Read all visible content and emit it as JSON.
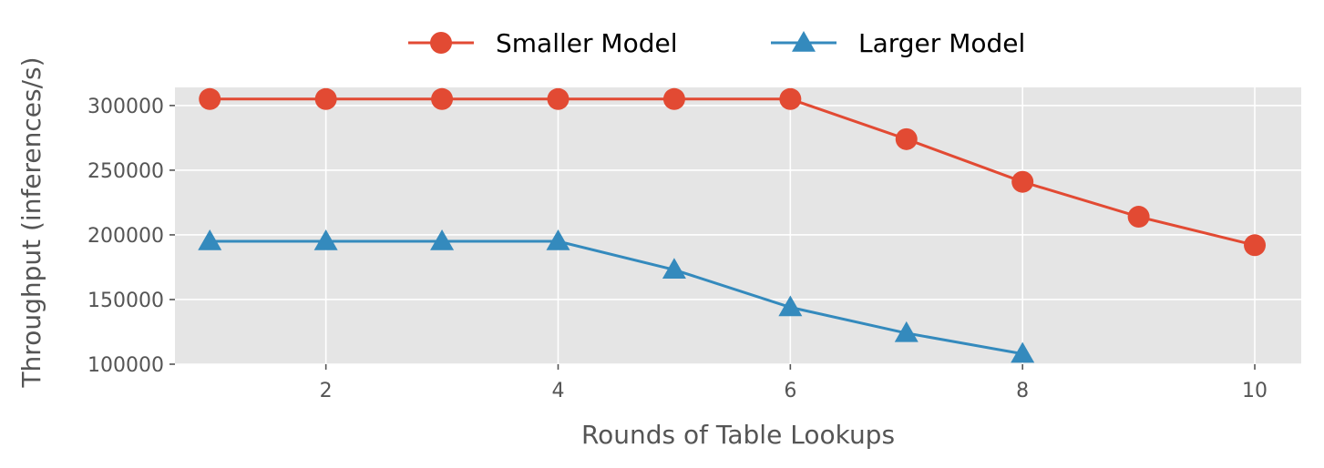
{
  "chart_data": {
    "type": "line",
    "xlabel": "Rounds of Table Lookups",
    "ylabel": "Throughput (inferences/s)",
    "xlim": [
      0.7,
      10.4
    ],
    "ylim": [
      100000,
      314000
    ],
    "x_ticks": [
      2,
      4,
      6,
      8,
      10
    ],
    "y_ticks": [
      100000,
      150000,
      200000,
      250000,
      300000
    ],
    "grid": true,
    "legend_position": "top-center",
    "background_color": "#e5e5e5",
    "series": [
      {
        "name": "Smaller Model",
        "color": "#e24a33",
        "marker": "circle",
        "x": [
          1,
          2,
          3,
          4,
          5,
          6,
          7,
          8,
          9,
          10
        ],
        "values": [
          305000,
          305000,
          305000,
          305000,
          305000,
          305000,
          274000,
          241000,
          214000,
          192000
        ]
      },
      {
        "name": "Larger Model",
        "color": "#348abd",
        "marker": "triangle",
        "x": [
          1,
          2,
          3,
          4,
          5,
          6,
          7,
          8
        ],
        "values": [
          195000,
          195000,
          195000,
          195000,
          173000,
          144000,
          124000,
          108000
        ]
      }
    ]
  }
}
